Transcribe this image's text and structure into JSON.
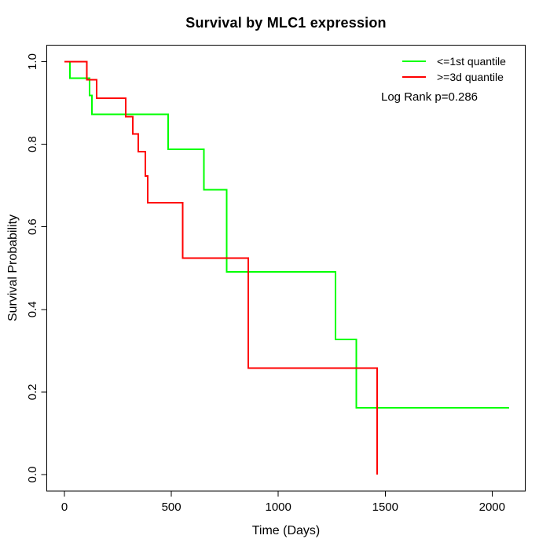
{
  "figure": {
    "title": "Survival by MLC1 expression"
  },
  "legend": {
    "items": [
      {
        "label": "<=1st quantile",
        "color": "#00ff00"
      },
      {
        "label": ">=3d quantile",
        "color": "#ff0000"
      }
    ],
    "annotation": "Log Rank p=0.286"
  },
  "chart_data": {
    "type": "line",
    "subtype": "kaplan-meier-step",
    "title": "Survival by MLC1 expression",
    "xlabel": "Time (Days)",
    "ylabel": "Survival Probability",
    "xlim": [
      -83,
      2155
    ],
    "ylim": [
      -0.04,
      1.04
    ],
    "x_ticks": [
      0,
      500,
      1000,
      1500,
      2000
    ],
    "y_ticks": [
      0,
      0.2,
      0.4,
      0.6,
      0.8,
      1
    ],
    "grid": false,
    "legend_position": "top-right",
    "annotation": "Log Rank p=0.286",
    "series": [
      {
        "name": "<=1st quantile",
        "color": "#00ff00",
        "end_time": 2080,
        "steps": [
          [
            0,
            1.0
          ],
          [
            26,
            0.96
          ],
          [
            118,
            0.918
          ],
          [
            129,
            0.873
          ],
          [
            484,
            0.788
          ],
          [
            652,
            0.69
          ],
          [
            758,
            0.491
          ],
          [
            1267,
            0.327
          ],
          [
            1364,
            0.162
          ]
        ]
      },
      {
        "name": ">=3d quantile",
        "color": "#ff0000",
        "end_time": 1463,
        "steps": [
          [
            0,
            1.0
          ],
          [
            104,
            0.956
          ],
          [
            151,
            0.912
          ],
          [
            287,
            0.867
          ],
          [
            320,
            0.825
          ],
          [
            345,
            0.782
          ],
          [
            378,
            0.723
          ],
          [
            390,
            0.658
          ],
          [
            552,
            0.524
          ],
          [
            859,
            0.258
          ],
          [
            1463,
            0.0
          ]
        ]
      }
    ]
  }
}
